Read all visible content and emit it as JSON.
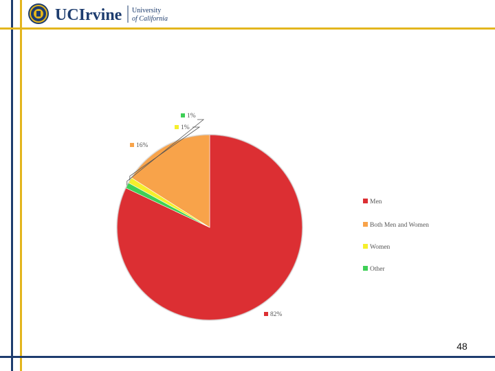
{
  "logo": {
    "word_main": "UCIrvine",
    "word_univ_1": "University",
    "word_univ_2": "of California",
    "colors": {
      "navy": "#1d3c6e",
      "gold": "#e3b51d"
    }
  },
  "slide": {
    "number": "48"
  },
  "chart_data": {
    "type": "pie",
    "categories": [
      "Men",
      "Both Men and Women",
      "Women",
      "Other"
    ],
    "values": [
      82,
      16,
      1,
      1
    ],
    "labels": [
      "82%",
      "16%",
      "1%",
      "1%"
    ],
    "colors": [
      "#dc2f33",
      "#f8a34a",
      "#f5ef2c",
      "#3ecf56"
    ],
    "legend": "right",
    "title": ""
  }
}
